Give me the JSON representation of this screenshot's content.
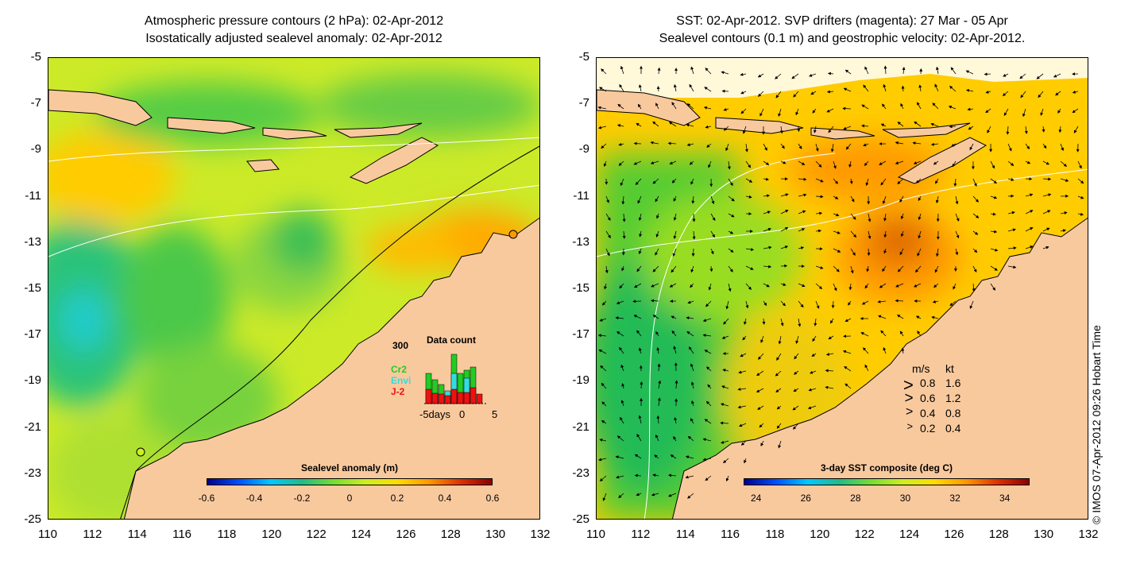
{
  "left_panel": {
    "title_line1": "Atmospheric pressure contours (2 hPa): 02-Apr-2012",
    "title_line2": "Isostatically adjusted sealevel anomaly: 02-Apr-2012",
    "colorbar_title": "Sealevel anomaly (m)",
    "colorbar_ticks": [
      "-0.6",
      "-0.4",
      "-0.2",
      "0",
      "0.2",
      "0.4",
      "0.6"
    ],
    "histogram": {
      "title": "Data count",
      "ymax_label": "300",
      "xlabel_left": "-5days",
      "xlabel_mid": "0",
      "xlabel_right": "5",
      "series": [
        {
          "name": "Cr2",
          "color": "#22cc22"
        },
        {
          "name": "Envi",
          "color": "#33dddd"
        },
        {
          "name": "J-2",
          "color": "#ee1111"
        }
      ]
    }
  },
  "right_panel": {
    "title_line1": "SST: 02-Apr-2012. SVP drifters (magenta): 27 Mar - 05 Apr",
    "title_line2": "Sealevel contours (0.1 m) and geostrophic velocity: 02-Apr-2012.",
    "colorbar_title": "3-day SST composite (deg C)",
    "colorbar_ticks": [
      "24",
      "26",
      "28",
      "30",
      "32",
      "34"
    ],
    "velocity_legend": {
      "header_ms": "m/s",
      "header_kt": "kt",
      "rows": [
        {
          "ms": "0.8",
          "kt": "1.6"
        },
        {
          "ms": "0.6",
          "kt": "1.2"
        },
        {
          "ms": "0.4",
          "kt": "0.8"
        },
        {
          "ms": "0.2",
          "kt": "0.4"
        }
      ]
    }
  },
  "axes": {
    "y_ticks": [
      "-5",
      "-7",
      "-9",
      "-11",
      "-13",
      "-15",
      "-17",
      "-19",
      "-21",
      "-23",
      "-25"
    ],
    "x_ticks": [
      "110",
      "112",
      "114",
      "116",
      "118",
      "120",
      "122",
      "124",
      "126",
      "128",
      "130",
      "132"
    ]
  },
  "copyright": "© IMOS 07-Apr-2012 09:26 Hobart Time",
  "colors": {
    "land": "#f9c99e",
    "colormap": [
      "#00008b",
      "#0050ff",
      "#00c8ff",
      "#22bb88",
      "#77dd33",
      "#ccee22",
      "#ffdd00",
      "#ff9900",
      "#dd3300",
      "#8b0000"
    ]
  }
}
